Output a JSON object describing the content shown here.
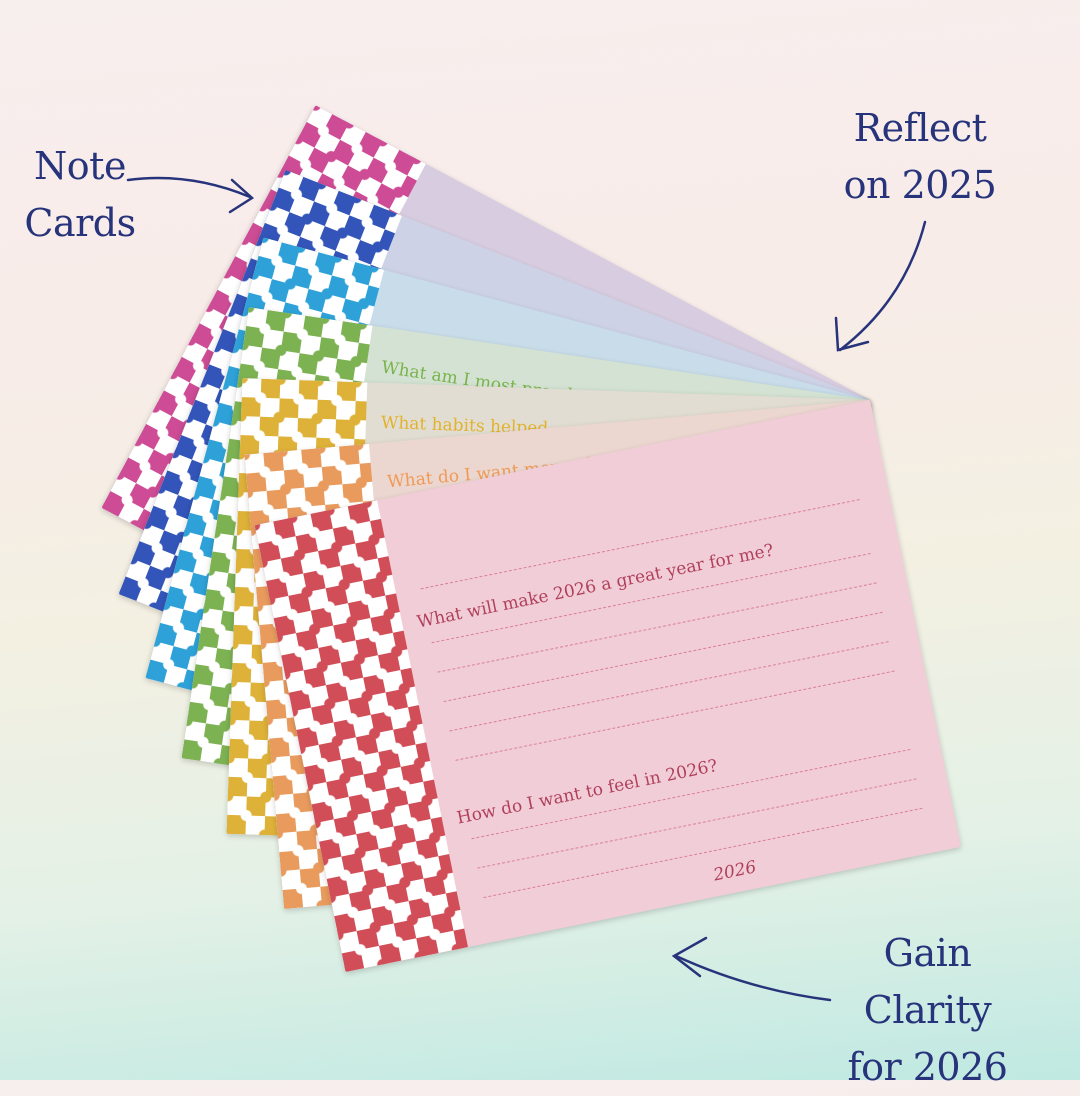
{
  "annotations": {
    "note_cards": [
      "Note",
      "Cards"
    ],
    "reflect": [
      "Reflect",
      "on 2025"
    ],
    "gain": [
      "Gain Clarity",
      "for 2026"
    ]
  },
  "colors": {
    "annotation": "#27337a"
  },
  "cards": [
    {
      "color": "#d9489a",
      "face": "#d8cde0",
      "question": ""
    },
    {
      "color": "#2f55c4",
      "face": "#cdd2e6",
      "question": ""
    },
    {
      "color": "#23a4e0",
      "face": "#c8dcea",
      "question": ""
    },
    {
      "color": "#79b44a",
      "face": "#d3e2d2",
      "question": "What am I most proud"
    },
    {
      "color": "#e3b22c",
      "face": "#e1ddd2",
      "question": "What habits helped"
    },
    {
      "color": "#ef9a55",
      "face": "#ecd6d0",
      "question": "What do I want more of in"
    },
    {
      "color": "#dc4a55",
      "face": "#f1cdd8",
      "question": ""
    }
  ],
  "front_card": {
    "question_1": "What will make 2026 a great year for me?",
    "question_2": "How do I want to feel in 2026?",
    "footer": "2026",
    "text_color": "#b0405a"
  }
}
